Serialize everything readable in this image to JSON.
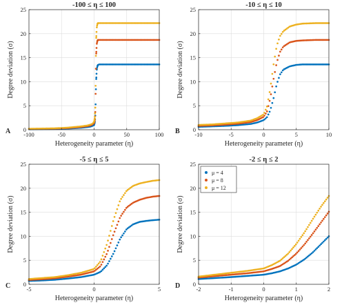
{
  "colors": {
    "mu4": "#0072BD",
    "mu8": "#D95319",
    "mu12": "#EDB120",
    "grid": "#dcdcdc",
    "axis": "#262626"
  },
  "legend": {
    "placement": "top-left (panel D)",
    "entries": [
      {
        "label": "μ = 4",
        "color": "#0072BD"
      },
      {
        "label": "μ = 8",
        "color": "#D95319"
      },
      {
        "label": "μ = 12",
        "color": "#EDB120"
      }
    ]
  },
  "chart_data": [
    {
      "type": "scatter",
      "panel": "A",
      "title": "-100 ≤ η ≤ 100",
      "xlabel": "Heterogeneity parameter (η)",
      "ylabel": "Degree deviation (σ)",
      "xlim": [
        -100,
        100
      ],
      "ylim": [
        0,
        25
      ],
      "xticks": [
        -100,
        -50,
        0,
        50,
        100
      ],
      "xtick_labels": [
        "-100",
        "-50",
        "0",
        "50",
        "100"
      ],
      "yticks": [
        0,
        5,
        10,
        15,
        20,
        25
      ],
      "ytick_labels": [
        "0",
        "5",
        "10",
        "15",
        "20",
        "25"
      ],
      "grid": true,
      "series": [
        {
          "name": "μ = 4",
          "color": "#0072BD",
          "x": [
            -100,
            -80,
            -60,
            -40,
            -20,
            -10,
            -5,
            -2,
            0,
            1,
            2,
            3,
            4,
            5,
            6,
            8,
            10,
            20,
            40,
            60,
            80,
            100
          ],
          "y": [
            0.1,
            0.13,
            0.17,
            0.25,
            0.4,
            0.55,
            0.65,
            0.8,
            1.0,
            1.5,
            3.2,
            10.0,
            12.4,
            13.2,
            13.5,
            13.6,
            13.6,
            13.6,
            13.6,
            13.6,
            13.6,
            13.6
          ]
        },
        {
          "name": "μ = 8",
          "color": "#D95319",
          "x": [
            -100,
            -80,
            -60,
            -40,
            -20,
            -10,
            -5,
            -2,
            0,
            1,
            2,
            3,
            4,
            5,
            6,
            8,
            10,
            20,
            40,
            60,
            80,
            100
          ],
          "y": [
            0.15,
            0.2,
            0.25,
            0.35,
            0.55,
            0.75,
            0.9,
            1.1,
            1.4,
            2.0,
            4.0,
            15.3,
            17.8,
            18.5,
            18.7,
            18.7,
            18.7,
            18.7,
            18.7,
            18.7,
            18.7,
            18.7
          ]
        },
        {
          "name": "μ = 12",
          "color": "#EDB120",
          "x": [
            -100,
            -80,
            -60,
            -40,
            -20,
            -10,
            -5,
            -2,
            0,
            1,
            2,
            3,
            4,
            5,
            6,
            8,
            10,
            20,
            40,
            60,
            80,
            100
          ],
          "y": [
            0.2,
            0.25,
            0.3,
            0.45,
            0.7,
            0.9,
            1.1,
            1.3,
            1.7,
            2.4,
            5.0,
            18.5,
            21.2,
            22.0,
            22.2,
            22.2,
            22.2,
            22.2,
            22.2,
            22.2,
            22.2,
            22.2
          ]
        }
      ]
    },
    {
      "type": "scatter",
      "panel": "B",
      "title": "-10 ≤ η ≤ 10",
      "xlabel": "Heterogeneity parameter (η)",
      "ylabel": "Degree deviation (σ)",
      "xlim": [
        -10,
        10
      ],
      "ylim": [
        0,
        25
      ],
      "xticks": [
        -10,
        -5,
        0,
        5,
        10
      ],
      "xtick_labels": [
        "-10",
        "-5",
        "0",
        "5",
        "10"
      ],
      "yticks": [
        0,
        5,
        10,
        15,
        20,
        25
      ],
      "ytick_labels": [
        "0",
        "5",
        "10",
        "15",
        "20",
        "25"
      ],
      "grid": true,
      "series": [
        {
          "name": "μ = 4",
          "color": "#0072BD",
          "x": [
            -10,
            -8,
            -6,
            -4,
            -2,
            -1,
            0,
            0.5,
            1,
            1.5,
            2,
            2.5,
            3,
            4,
            5,
            6,
            8,
            10
          ],
          "y": [
            0.6,
            0.7,
            0.8,
            0.95,
            1.2,
            1.5,
            2.0,
            2.6,
            4.0,
            6.5,
            9.5,
            11.5,
            12.5,
            13.2,
            13.5,
            13.6,
            13.6,
            13.6
          ]
        },
        {
          "name": "μ = 8",
          "color": "#D95319",
          "x": [
            -10,
            -8,
            -6,
            -4,
            -2,
            -1,
            0,
            0.5,
            1,
            1.5,
            2,
            2.5,
            3,
            4,
            5,
            6,
            8,
            10
          ],
          "y": [
            0.8,
            0.9,
            1.05,
            1.25,
            1.6,
            2.0,
            2.7,
            3.8,
            6.5,
            10.5,
            14.0,
            16.2,
            17.3,
            18.2,
            18.5,
            18.6,
            18.7,
            18.7
          ]
        },
        {
          "name": "μ = 12",
          "color": "#EDB120",
          "x": [
            -10,
            -8,
            -6,
            -4,
            -2,
            -1,
            0,
            0.5,
            1,
            1.5,
            2,
            2.5,
            3,
            4,
            5,
            6,
            8,
            10
          ],
          "y": [
            1.0,
            1.1,
            1.3,
            1.5,
            1.9,
            2.4,
            3.2,
            4.8,
            8.5,
            13.5,
            17.5,
            19.5,
            20.5,
            21.5,
            21.9,
            22.1,
            22.2,
            22.2
          ]
        }
      ]
    },
    {
      "type": "scatter",
      "panel": "C",
      "title": "-5 ≤ η ≤ 5",
      "xlabel": "Heterogeneity parameter (η)",
      "ylabel": "Degree deviation (σ)",
      "xlim": [
        -5,
        5
      ],
      "ylim": [
        0,
        25
      ],
      "xticks": [
        -5,
        0,
        5
      ],
      "xtick_labels": [
        "-5",
        "0",
        "5"
      ],
      "yticks": [
        0,
        5,
        10,
        15,
        20,
        25
      ],
      "ytick_labels": [
        "0",
        "5",
        "10",
        "15",
        "20",
        "25"
      ],
      "grid": true,
      "series": [
        {
          "name": "μ = 4",
          "color": "#0072BD",
          "x": [
            -5,
            -4,
            -3,
            -2,
            -1,
            0,
            0.5,
            1,
            1.5,
            2,
            2.5,
            3,
            3.5,
            4,
            4.5,
            5
          ],
          "y": [
            0.7,
            0.8,
            0.95,
            1.2,
            1.5,
            2.0,
            2.6,
            4.0,
            6.5,
            9.5,
            11.5,
            12.5,
            13.0,
            13.2,
            13.35,
            13.45
          ]
        },
        {
          "name": "μ = 8",
          "color": "#D95319",
          "x": [
            -5,
            -4,
            -3,
            -2,
            -1,
            0,
            0.5,
            1,
            1.5,
            2,
            2.5,
            3,
            3.5,
            4,
            4.5,
            5
          ],
          "y": [
            0.9,
            1.05,
            1.25,
            1.6,
            2.0,
            2.7,
            3.8,
            6.5,
            10.5,
            14.0,
            16.0,
            17.0,
            17.6,
            18.0,
            18.25,
            18.4
          ]
        },
        {
          "name": "μ = 12",
          "color": "#EDB120",
          "x": [
            -5,
            -4,
            -3,
            -2,
            -1,
            0,
            0.5,
            1,
            1.5,
            2,
            2.5,
            3,
            3.5,
            4,
            4.5,
            5
          ],
          "y": [
            1.1,
            1.3,
            1.5,
            1.9,
            2.4,
            3.2,
            4.8,
            8.5,
            13.5,
            17.5,
            19.5,
            20.5,
            21.0,
            21.3,
            21.55,
            21.7
          ]
        }
      ]
    },
    {
      "type": "scatter",
      "panel": "D",
      "title": "-2 ≤ η ≤ 2",
      "xlabel": "Heterogeneity parameter (η)",
      "ylabel": "Degree deviation (σ)",
      "xlim": [
        -2,
        2
      ],
      "ylim": [
        0,
        25
      ],
      "xticks": [
        -2,
        -1,
        0,
        1,
        2
      ],
      "xtick_labels": [
        "-2",
        "-1",
        "0",
        "1",
        "2"
      ],
      "yticks": [
        0,
        5,
        10,
        15,
        20,
        25
      ],
      "ytick_labels": [
        "0",
        "5",
        "10",
        "15",
        "20",
        "25"
      ],
      "grid": true,
      "series": [
        {
          "name": "μ = 4",
          "color": "#0072BD",
          "x": [
            -2,
            -1.5,
            -1,
            -0.5,
            0,
            0.25,
            0.5,
            0.75,
            1,
            1.25,
            1.5,
            1.75,
            2
          ],
          "y": [
            1.1,
            1.3,
            1.5,
            1.75,
            2.0,
            2.3,
            2.7,
            3.3,
            4.1,
            5.2,
            6.6,
            8.3,
            10.0
          ]
        },
        {
          "name": "μ = 8",
          "color": "#D95319",
          "x": [
            -2,
            -1.5,
            -1,
            -0.5,
            0,
            0.25,
            0.5,
            0.75,
            1,
            1.25,
            1.5,
            1.75,
            2
          ],
          "y": [
            1.4,
            1.7,
            2.0,
            2.3,
            2.7,
            3.2,
            3.8,
            4.9,
            6.4,
            8.3,
            10.5,
            12.8,
            15.1
          ]
        },
        {
          "name": "μ = 12",
          "color": "#EDB120",
          "x": [
            -2,
            -1.5,
            -1,
            -0.5,
            0,
            0.25,
            0.5,
            0.75,
            1,
            1.25,
            1.5,
            1.75,
            2
          ],
          "y": [
            1.6,
            2.0,
            2.4,
            2.8,
            3.3,
            4.0,
            4.9,
            6.4,
            8.4,
            10.8,
            13.5,
            16.1,
            18.4
          ]
        }
      ]
    }
  ]
}
